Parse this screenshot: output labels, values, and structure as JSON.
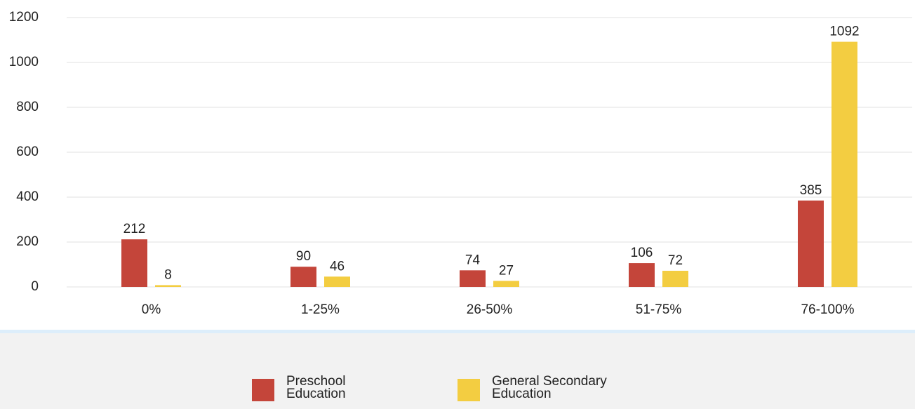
{
  "chart_data": {
    "type": "bar",
    "categories": [
      "0%",
      "1-25%",
      "26-50%",
      "51-75%",
      "76-100%"
    ],
    "series": [
      {
        "name": "Preschool Education",
        "color": "#c4453a",
        "values": [
          212,
          90,
          74,
          106,
          385
        ]
      },
      {
        "name": "General Secondary Education",
        "color": "#f3cd41",
        "values": [
          8,
          46,
          27,
          72,
          1092
        ]
      }
    ],
    "ylim": [
      0,
      1200
    ],
    "yticks": [
      0,
      200,
      400,
      600,
      800,
      1000,
      1200
    ],
    "grid": true,
    "legend": "bottom"
  }
}
